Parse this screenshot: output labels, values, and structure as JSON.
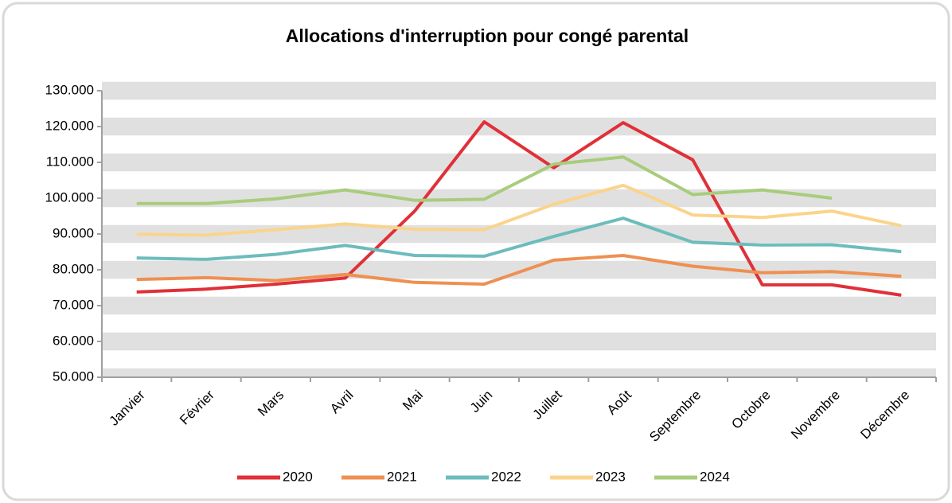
{
  "chart_data": {
    "type": "line",
    "title": "Allocations d'interruption pour congé parental",
    "categories": [
      "Janvier",
      "Février",
      "Mars",
      "Avril",
      "Mai",
      "Juin",
      "Juillet",
      "Août",
      "Septembre",
      "Octobre",
      "Novembre",
      "Décembre"
    ],
    "series": [
      {
        "name": "2020",
        "color": "#e03038",
        "values": [
          73800,
          74600,
          76000,
          77700,
          96400,
          121300,
          108500,
          121100,
          110700,
          75800,
          75800,
          72900
        ]
      },
      {
        "name": "2021",
        "color": "#ee9052",
        "values": [
          77300,
          77800,
          77000,
          78700,
          76500,
          76000,
          82700,
          84000,
          81000,
          79200,
          79500,
          78200
        ]
      },
      {
        "name": "2022",
        "color": "#6dbcbc",
        "values": [
          83300,
          82900,
          84300,
          86800,
          84000,
          83800,
          89300,
          94400,
          87700,
          86900,
          87000,
          85100
        ]
      },
      {
        "name": "2023",
        "color": "#fad48c",
        "values": [
          89900,
          89700,
          91200,
          92800,
          91300,
          91200,
          98300,
          103600,
          95300,
          94600,
          96400,
          92300
        ]
      },
      {
        "name": "2024",
        "color": "#a8cc7c",
        "values": [
          98500,
          98500,
          99800,
          102300,
          99400,
          99700,
          109500,
          111500,
          101000,
          102300,
          100000,
          null
        ]
      }
    ],
    "ylim": [
      50000,
      130000
    ],
    "yticks": [
      {
        "value": 50000,
        "label": "50.000"
      },
      {
        "value": 60000,
        "label": "60.000"
      },
      {
        "value": 70000,
        "label": "70.000"
      },
      {
        "value": 80000,
        "label": "80.000"
      },
      {
        "value": 90000,
        "label": "90.000"
      },
      {
        "value": 100000,
        "label": "100.000"
      },
      {
        "value": 110000,
        "label": "110.000"
      },
      {
        "value": 120000,
        "label": "120.000"
      },
      {
        "value": 130000,
        "label": "130.000"
      }
    ],
    "grid": true,
    "legend": "bottom"
  }
}
